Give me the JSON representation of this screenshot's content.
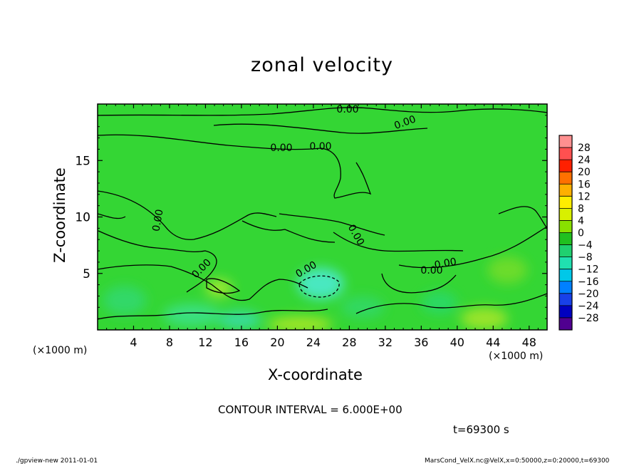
{
  "chart_data": {
    "type": "heatmap",
    "title": "zonal velocity",
    "xlabel": "X-coordinate",
    "ylabel": "Z-coordinate",
    "x_unit_label": "(×1000 m)",
    "x_ticks": [
      4,
      8,
      12,
      16,
      20,
      24,
      28,
      32,
      36,
      40,
      44,
      48
    ],
    "y_ticks": [
      5,
      10,
      15
    ],
    "xlim": [
      0,
      50
    ],
    "ylim": [
      0,
      20
    ],
    "colorbar": {
      "levels": [
        28,
        24,
        20,
        16,
        12,
        8,
        4,
        0,
        -4,
        -8,
        -12,
        -16,
        -20,
        -24,
        -28
      ],
      "colors": [
        "#ff9090",
        "#ff5050",
        "#ff2000",
        "#ff7000",
        "#ffb000",
        "#ffee00",
        "#d8f000",
        "#88e000",
        "#20c020",
        "#20d070",
        "#20e0b0",
        "#00c8e8",
        "#0080ff",
        "#1840e8",
        "#0000c0",
        "#500090"
      ],
      "labels": [
        "28",
        "24",
        "20",
        "16",
        "12",
        "8",
        "4",
        "0",
        "−4",
        "−8",
        "−12",
        "−16",
        "−20",
        "−24",
        "−28"
      ]
    },
    "contour_labels": [
      "0.00",
      "0.00",
      "0.00",
      "0.00",
      "0.00",
      "0.00",
      "0.00",
      "0.00",
      "0.00",
      "0.00"
    ],
    "field_background": "#34d634",
    "anomalies": [
      {
        "x": 24.8,
        "z": 4.1,
        "rx": 2.6,
        "rz": 1.4,
        "value": -8,
        "color": "#4ae8c0",
        "dashed": true
      },
      {
        "x": 13.5,
        "z": 3.7,
        "rx": 1.5,
        "rz": 0.8,
        "value": 4,
        "color": "#9ae830"
      },
      {
        "x": 10.5,
        "z": 1.3,
        "rx": 3.2,
        "rz": 1.0,
        "value": -4,
        "color": "#3ae080"
      },
      {
        "x": 15.8,
        "z": 0.9,
        "rx": 2.4,
        "rz": 0.8,
        "value": -6,
        "color": "#38dc9a"
      },
      {
        "x": 22.5,
        "z": 0.5,
        "rx": 3.6,
        "rz": 0.7,
        "value": 4,
        "color": "#a0e628"
      },
      {
        "x": 43.0,
        "z": 1.0,
        "rx": 2.6,
        "rz": 1.0,
        "value": 4,
        "color": "#98e42a"
      },
      {
        "x": 45.6,
        "z": 5.3,
        "rx": 2.2,
        "rz": 1.2,
        "value": 3,
        "color": "#6cdc2c"
      },
      {
        "x": 29.5,
        "z": 2.0,
        "rx": 2.4,
        "rz": 1.0,
        "value": -3,
        "color": "#30d860"
      },
      {
        "x": 3.0,
        "z": 2.6,
        "rx": 2.4,
        "rz": 1.3,
        "value": -3,
        "color": "#30d868"
      },
      {
        "x": 38.0,
        "z": 2.4,
        "rx": 2.0,
        "rz": 1.0,
        "value": -3,
        "color": "#2cd864"
      }
    ],
    "contour_interval_text": "CONTOUR INTERVAL = 6.000E+00",
    "time_text": "t=69300 s",
    "grid": false
  },
  "footer": {
    "left": "./gpview-new   2011-01-01",
    "right": "MarsCond_VelX.nc@VelX,x=0:50000,z=0:20000,t=69300"
  }
}
